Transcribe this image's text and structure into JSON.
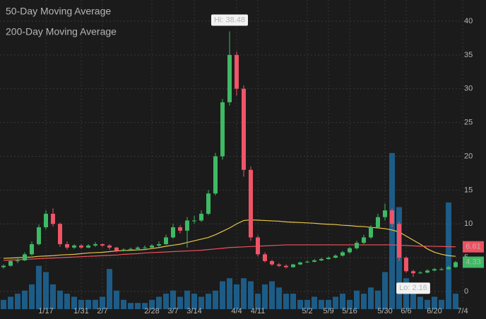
{
  "chart_data": {
    "type": "candlestick",
    "categories": [
      null,
      null,
      null,
      null,
      null,
      null,
      "1/17",
      null,
      null,
      null,
      null,
      "1/31",
      null,
      null,
      "2/7",
      null,
      null,
      null,
      null,
      null,
      null,
      "2/28",
      null,
      null,
      "3/7",
      null,
      null,
      "3/14",
      null,
      null,
      null,
      null,
      null,
      "4/4",
      null,
      null,
      "4/11",
      null,
      null,
      null,
      null,
      null,
      null,
      "5/2",
      null,
      null,
      "5/9",
      null,
      null,
      "5/16",
      null,
      null,
      null,
      null,
      "5/30",
      null,
      null,
      "6/6",
      null,
      null,
      null,
      "6/20",
      null,
      null,
      null,
      "7/4"
    ],
    "open": [
      3.6,
      3.8,
      4.5,
      4.6,
      5.5,
      7.0,
      9.5,
      11.5,
      10.0,
      7.0,
      6.5,
      6.8,
      6.5,
      6.8,
      7.0,
      6.8,
      6.5,
      6.0,
      6.2,
      6.3,
      6.5,
      6.5,
      6.8,
      7.0,
      8.0,
      9.5,
      9.0,
      10.5,
      10.5,
      11.5,
      14.5,
      20.0,
      28.0,
      35.0,
      30.0,
      18.0,
      8.0,
      5.5,
      4.5,
      4.0,
      3.8,
      3.6,
      4.0,
      4.3,
      4.4,
      4.6,
      4.8,
      5.0,
      5.3,
      5.8,
      6.4,
      7.2,
      8.0,
      9.5,
      11.0,
      12.0,
      10.0,
      5.0,
      3.0,
      2.7,
      2.8,
      3.1,
      3.3,
      3.3,
      3.6,
      null
    ],
    "high": [
      4.0,
      4.6,
      5.0,
      5.8,
      7.4,
      9.9,
      12.0,
      12.3,
      10.2,
      7.4,
      7.0,
      7.0,
      7.0,
      7.3,
      7.1,
      7.0,
      6.6,
      6.4,
      6.5,
      6.7,
      6.8,
      7.0,
      7.4,
      8.4,
      10.0,
      9.8,
      11.0,
      11.2,
      12.0,
      15.0,
      20.5,
      28.5,
      38.48,
      35.5,
      30.5,
      18.5,
      8.3,
      5.8,
      4.7,
      4.2,
      4.0,
      4.1,
      4.4,
      4.6,
      4.8,
      5.0,
      5.2,
      5.5,
      6.0,
      6.6,
      7.5,
      8.4,
      9.8,
      11.5,
      13.0,
      12.3,
      10.3,
      5.2,
      3.2,
      3.0,
      3.3,
      3.5,
      3.5,
      3.8,
      4.5,
      null
    ],
    "low": [
      3.4,
      3.7,
      4.2,
      4.5,
      5.3,
      6.8,
      9.2,
      9.6,
      6.6,
      6.2,
      6.3,
      6.3,
      6.4,
      6.6,
      6.6,
      6.2,
      5.8,
      5.9,
      6.0,
      6.1,
      6.3,
      6.4,
      6.6,
      6.9,
      7.8,
      8.6,
      6.5,
      10.0,
      10.3,
      11.3,
      14.2,
      19.5,
      27.5,
      29.0,
      17.0,
      7.5,
      5.2,
      4.3,
      3.8,
      3.6,
      3.4,
      3.5,
      3.9,
      4.2,
      4.3,
      4.5,
      4.7,
      4.9,
      5.2,
      5.6,
      6.2,
      7.0,
      7.8,
      9.3,
      10.5,
      9.5,
      4.5,
      2.8,
      2.16,
      2.6,
      2.7,
      3.0,
      3.1,
      3.2,
      3.5,
      null
    ],
    "close": [
      3.8,
      4.5,
      4.6,
      5.5,
      7.0,
      9.5,
      11.5,
      10.0,
      7.0,
      6.5,
      6.8,
      6.5,
      6.8,
      7.0,
      6.8,
      6.5,
      6.0,
      6.2,
      6.3,
      6.5,
      6.5,
      6.8,
      7.0,
      8.0,
      9.5,
      9.0,
      10.5,
      10.5,
      11.5,
      14.5,
      20.0,
      28.0,
      35.0,
      30.0,
      18.0,
      8.0,
      5.5,
      4.5,
      4.0,
      3.8,
      3.6,
      4.0,
      4.3,
      4.4,
      4.6,
      4.8,
      5.0,
      5.3,
      5.8,
      6.4,
      7.2,
      8.0,
      9.5,
      11.0,
      12.0,
      10.0,
      5.0,
      3.0,
      2.7,
      2.8,
      3.1,
      3.3,
      3.3,
      3.6,
      4.33,
      null
    ],
    "up_color": "#3fb964",
    "down_color": "#ef5467",
    "volume": {
      "axis": "y2",
      "color": "#1d5c86",
      "values": [
        3,
        4,
        5,
        6,
        8,
        14,
        12,
        8,
        6,
        5,
        4,
        3,
        3,
        3,
        4,
        13,
        6,
        3,
        2,
        2,
        2,
        3,
        4,
        5,
        6,
        4,
        6,
        5,
        4,
        5,
        6,
        9,
        10,
        8,
        10,
        9,
        5,
        8,
        9,
        7,
        5,
        5,
        3,
        3,
        4,
        3,
        3,
        4,
        5,
        3,
        6,
        5,
        7,
        6,
        12,
        50.5,
        33,
        10,
        6,
        4,
        3,
        4,
        3,
        34.5,
        5,
        null
      ]
    },
    "series": [
      {
        "name": "50-Day Moving Average",
        "color": "#e8c547",
        "values": [
          4.9,
          4.95,
          5.0,
          5.05,
          5.1,
          5.2,
          5.25,
          5.3,
          5.4,
          5.45,
          5.5,
          5.6,
          5.7,
          5.75,
          5.8,
          5.9,
          6.0,
          6.05,
          6.1,
          6.15,
          6.2,
          6.35,
          6.5,
          6.7,
          6.85,
          7.0,
          7.25,
          7.5,
          7.75,
          8.0,
          8.4,
          8.9,
          9.4,
          10.0,
          10.5,
          10.6,
          10.55,
          10.5,
          10.45,
          10.4,
          10.3,
          10.25,
          10.2,
          10.15,
          10.1,
          10.0,
          9.95,
          9.9,
          9.8,
          9.75,
          9.65,
          9.6,
          9.5,
          9.4,
          9.3,
          9.1,
          8.8,
          8.2,
          7.6,
          7.0,
          6.3,
          5.8,
          5.5,
          5.3,
          5.2,
          null
        ]
      },
      {
        "name": "200-Day Moving Average",
        "color": "#ef4f5f",
        "values": [
          4.6,
          4.65,
          4.7,
          4.75,
          4.8,
          4.85,
          4.9,
          4.95,
          5.0,
          5.05,
          5.1,
          5.15,
          5.2,
          5.25,
          5.3,
          5.35,
          5.4,
          5.5,
          5.55,
          5.6,
          5.7,
          5.75,
          5.8,
          5.85,
          5.9,
          5.95,
          6.0,
          6.05,
          6.1,
          6.2,
          6.3,
          6.4,
          6.5,
          6.55,
          6.6,
          6.65,
          6.7,
          6.75,
          6.8,
          6.85,
          6.9,
          6.9,
          6.9,
          6.9,
          6.9,
          6.9,
          6.9,
          6.9,
          6.9,
          6.9,
          6.9,
          6.9,
          6.9,
          6.9,
          6.9,
          6.9,
          6.85,
          6.8,
          6.75,
          6.7,
          6.7,
          6.68,
          6.66,
          6.63,
          6.61,
          null
        ]
      }
    ],
    "ylim": [
      -2.61,
      43.13
    ],
    "yticks": [
      0,
      5,
      10,
      15,
      20,
      25,
      30,
      35,
      40
    ],
    "y2lim": [
      0,
      100
    ],
    "grid": true,
    "annotations": [
      "Hi: 38.48",
      "Lo: 2.16"
    ]
  }
}
